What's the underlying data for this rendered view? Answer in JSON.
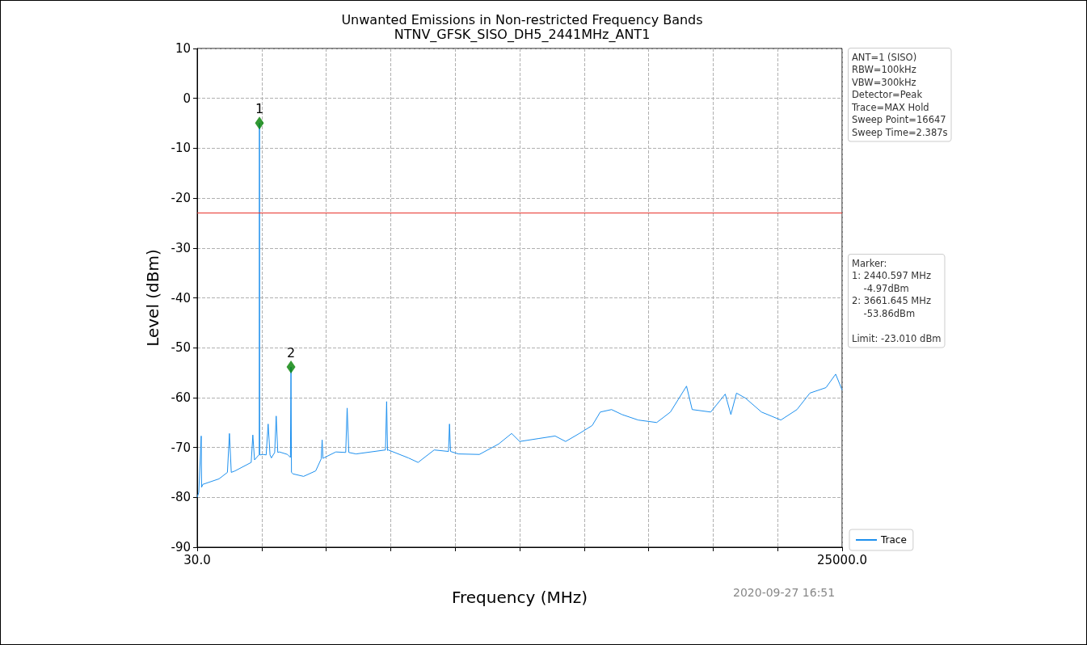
{
  "chart_data": {
    "type": "line",
    "title": "Unwanted Emissions in Non-restricted Frequency Bands",
    "subtitle": "NTNV_GFSK_SISO_DH5_2441MHz_ANT1",
    "xlabel": "Frequency (MHz)",
    "ylabel": "Level (dBm)",
    "xlim": [
      30,
      25000
    ],
    "ylim": [
      -90,
      10
    ],
    "xticks": [
      {
        "value": 30,
        "label": "30.0"
      },
      {
        "value": 2527,
        "label": null
      },
      {
        "value": 5024,
        "label": null
      },
      {
        "value": 7521,
        "label": null
      },
      {
        "value": 10018,
        "label": null
      },
      {
        "value": 12515,
        "label": null
      },
      {
        "value": 15012,
        "label": null
      },
      {
        "value": 17509,
        "label": null
      },
      {
        "value": 20006,
        "label": null
      },
      {
        "value": 22503,
        "label": null
      },
      {
        "value": 25000,
        "label": "25000.0"
      }
    ],
    "yticks": [
      -90,
      -80,
      -70,
      -60,
      -50,
      -40,
      -30,
      -20,
      -10,
      0,
      10
    ],
    "grid": true,
    "legend": "bottom right",
    "series": [
      {
        "name": "Trace",
        "color": "#1e90ee",
        "marker": "none",
        "line_style": "solid",
        "x": [
          30,
          92,
          186,
          200,
          248,
          873,
          1200,
          1278,
          1350,
          1497,
          2121,
          2184,
          2250,
          2433,
          2440.597,
          2450,
          2589,
          2700,
          2777,
          2850,
          2902,
          3030,
          3089,
          3150,
          3214,
          3526,
          3640,
          3661.645,
          3680,
          3744,
          4150,
          4618,
          4830,
          4868,
          4900,
          4930,
          5399,
          5780,
          5836,
          5900,
          6179,
          7320,
          7365,
          7400,
          7427,
          8208,
          8582,
          9206,
          9760,
          9799,
          9840,
          10143,
          10954,
          11703,
          12203,
          12515,
          13264,
          13888,
          14294,
          14825,
          15324,
          15636,
          16073,
          16479,
          17103,
          17821,
          18352,
          18976,
          19195,
          19913,
          20474,
          20693,
          20911,
          21255,
          21879,
          22628,
          23252,
          23752,
          24376,
          24750,
          25000
        ],
        "values": [
          -80,
          -79,
          -67.7,
          -78,
          -77.4,
          -76.3,
          -75,
          -67.2,
          -75,
          -74.7,
          -73,
          -67.5,
          -72.5,
          -71.4,
          -4.97,
          -71.5,
          -71.4,
          -71.5,
          -65.3,
          -71.5,
          -72.1,
          -71,
          -63.7,
          -71,
          -70.9,
          -71.4,
          -72,
          -53.86,
          -75,
          -75.3,
          -75.8,
          -74.7,
          -72.3,
          -68.5,
          -72.2,
          -72.1,
          -70.9,
          -71,
          -62.1,
          -71,
          -71.3,
          -70.5,
          -60.8,
          -70.6,
          -70.5,
          -72.1,
          -73,
          -70.5,
          -70.8,
          -65.3,
          -70.8,
          -71.3,
          -71.4,
          -69.3,
          -67.2,
          -68.8,
          -68.2,
          -67.7,
          -68.8,
          -67.2,
          -65.6,
          -62.9,
          -62.4,
          -63.4,
          -64.5,
          -65,
          -62.9,
          -57.7,
          -62.4,
          -62.9,
          -59.3,
          -63.4,
          -59.1,
          -60.1,
          -62.9,
          -64.5,
          -62.4,
          -59.1,
          -58,
          -55.3,
          -58.5
        ]
      },
      {
        "type": "scatter",
        "color": "#007f00",
        "marker": "diamond",
        "x": [
          2440.597,
          3661.645
        ],
        "values": [
          -4.97,
          -53.86
        ]
      }
    ],
    "ref_lines": [
      {
        "axis": "y",
        "value": -23.01,
        "color": "#e8322b",
        "line_style": "solid"
      }
    ],
    "annotations": [
      "ANT=1 (SISO)\nRBW=100kHz\nVBW=300kHz\nDetector=Peak\nTrace=MAX Hold\nSweep Point=16647\nSweep Time=2.387s",
      "Marker:\n1: 2440.597 MHz\n    -4.97dBm\n2: 3661.645 MHz\n    -53.86dBm\n\nLimit: -23.010 dBm",
      "2020-09-27 16:51",
      {
        "text": "1",
        "x": 2440.597,
        "y": -4.97
      },
      {
        "text": "2",
        "x": 3661.645,
        "y": -53.86
      }
    ]
  }
}
